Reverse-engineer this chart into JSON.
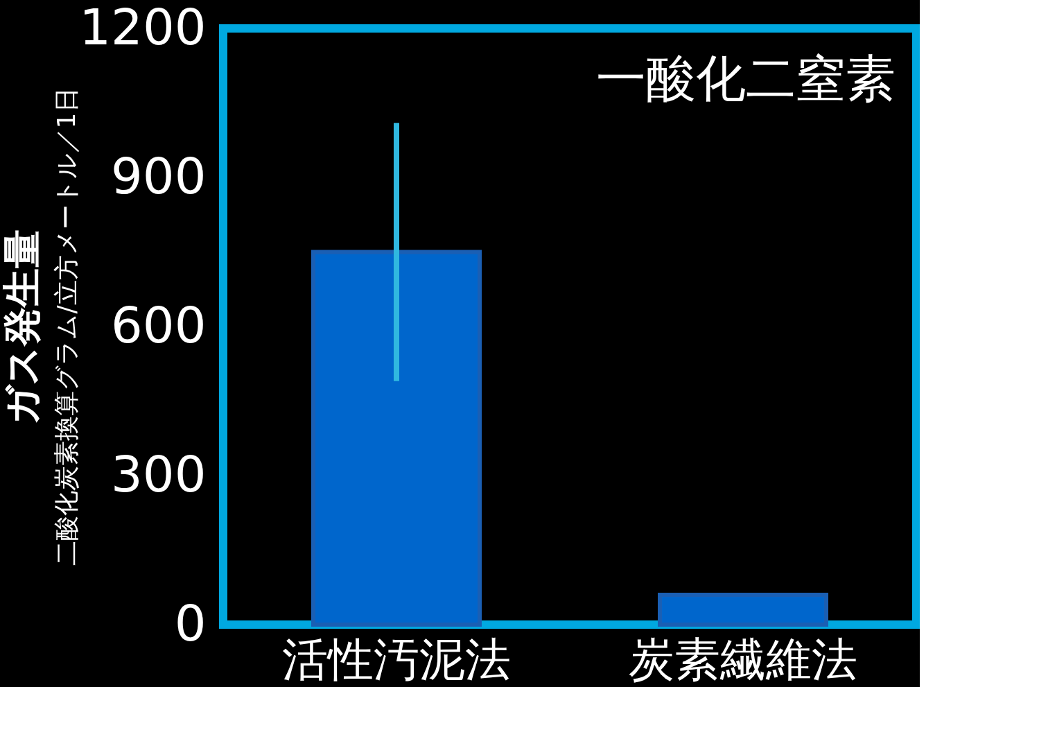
{
  "chart_data": {
    "type": "bar",
    "title": "一酸化二窒素",
    "ylabel": "ガス発生量",
    "annotations": [
      "二酸化炭素換算グラム/立方メートル／1日"
    ],
    "categories": [
      "活性汚泥法",
      "炭素繊維法"
    ],
    "values": [
      750,
      60
    ],
    "errors": [
      [
        490,
        1010
      ],
      null
    ],
    "color": "#0066cc",
    "ylim": [
      0,
      1200
    ],
    "yticks": [
      0,
      300,
      600,
      900,
      1200
    ],
    "grid": false
  }
}
